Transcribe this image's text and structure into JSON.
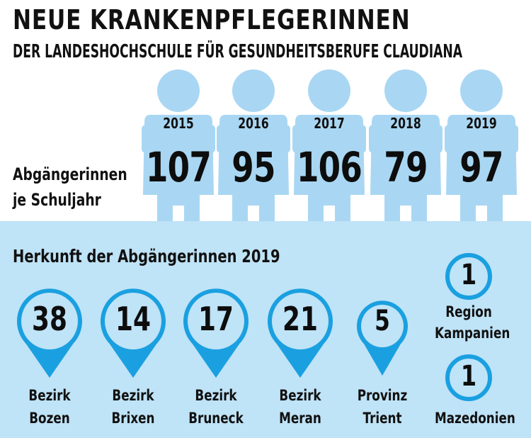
{
  "title": "NEUE KRANKENPFLEGERINNEN",
  "subtitle": "DER LANDESHOCHSCHULE FÜR GESUNDHEITSBERUFE CLAUDIANA",
  "graduates_label_line1": "Abgängerinnen",
  "graduates_label_line2": "je Schuljahr",
  "origin_title": "Herkunft der Abgängerinnen 2019",
  "colors": {
    "figure": "#a9d7f3",
    "band": "#bfe3f7",
    "pin": "#1aa0e0",
    "text": "#111111"
  },
  "chart_data": [
    {
      "type": "bar",
      "title": "Abgängerinnen je Schuljahr",
      "categories": [
        "2015",
        "2016",
        "2017",
        "2018",
        "2019"
      ],
      "values": [
        107,
        95,
        106,
        79,
        97
      ]
    },
    {
      "type": "table",
      "title": "Herkunft der Abgängerinnen 2019",
      "pins": [
        {
          "line1": "Bezirk",
          "line2": "Bozen",
          "value": 38
        },
        {
          "line1": "Bezirk",
          "line2": "Brixen",
          "value": 14
        },
        {
          "line1": "Bezirk",
          "line2": "Bruneck",
          "value": 17
        },
        {
          "line1": "Bezirk",
          "line2": "Meran",
          "value": 21
        },
        {
          "line1": "Provinz",
          "line2": "Trient",
          "value": 5
        }
      ],
      "circles": [
        {
          "line1": "Region",
          "line2": "Kampanien",
          "value": 1
        },
        {
          "line1": "Mazedonien",
          "line2": "",
          "value": 1
        }
      ]
    }
  ]
}
